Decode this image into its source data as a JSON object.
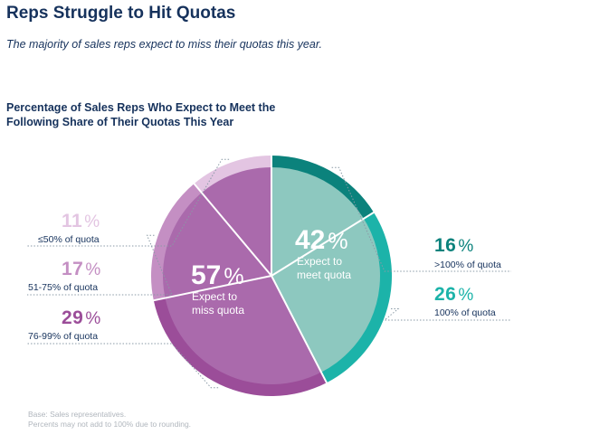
{
  "header": {
    "title": "Reps Struggle to Hit Quotas",
    "subtitle": "The majority of sales reps expect to miss their quotas this year."
  },
  "chart_data": {
    "type": "pie",
    "title_lines": [
      "Percentage of Sales Reps Who Expect to Meet the",
      "Following Share of Their Quotas This Year"
    ],
    "groups": [
      {
        "value": "42",
        "symbol": "%",
        "label_lines": [
          "Expect to",
          "meet quota"
        ],
        "color": "#8dc8bf"
      },
      {
        "value": "57",
        "symbol": "%",
        "label_lines": [
          "Expect to",
          "miss quota"
        ],
        "color": "#aa6aac"
      }
    ],
    "slices": [
      {
        "name": ">100% of quota",
        "value": 16,
        "color": "#0b827c",
        "label_color": "#0b827c"
      },
      {
        "name": "100% of quota",
        "value": 26,
        "color": "#1cb3a9",
        "label_color": "#1cb3a9"
      },
      {
        "name": "76-99% of quota",
        "value": 29,
        "color": "#9b4d99",
        "label_color": "#9b4d99"
      },
      {
        "name": "51-75% of quota",
        "value": 17,
        "color": "#c48fc3",
        "label_color": "#c48fc3"
      },
      {
        "name": "≤50% of quota",
        "value": 11,
        "color": "#e3c5e2",
        "label_color": "#e3c5e2"
      }
    ]
  },
  "footnotes": [
    "Base: Sales representatives.",
    "Percents may not add to 100% due to rounding."
  ]
}
